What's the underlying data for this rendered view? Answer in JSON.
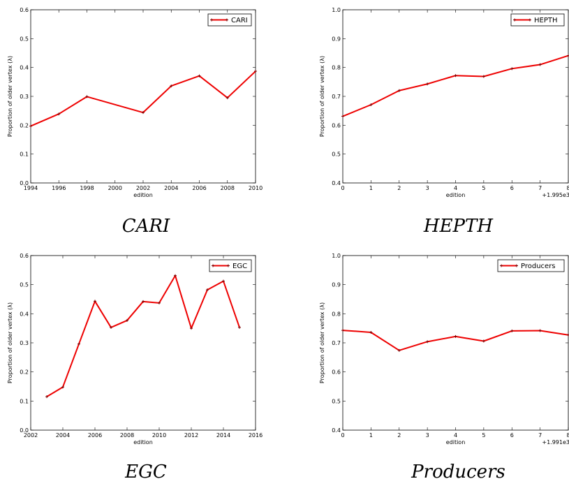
{
  "chart_data": [
    {
      "type": "line",
      "caption": "CARI",
      "xlabel": "edition",
      "ylabel": "Proportion of older vertex (λ)",
      "xlim": [
        1994,
        2010
      ],
      "ylim": [
        0.0,
        0.6
      ],
      "xticks": [
        1994,
        1996,
        1998,
        2000,
        2002,
        2004,
        2006,
        2008,
        2010
      ],
      "yticks": [
        0.0,
        0.1,
        0.2,
        0.3,
        0.4,
        0.5,
        0.6
      ],
      "tick_offset_label": "",
      "legend_position": "top-right",
      "color": "#ee0000",
      "series": [
        {
          "name": "CARI",
          "x": [
            1994,
            1996,
            1998,
            2002,
            2004,
            2006,
            2008,
            2010
          ],
          "values": [
            0.197,
            0.239,
            0.299,
            0.244,
            0.336,
            0.371,
            0.295,
            0.387
          ]
        }
      ]
    },
    {
      "type": "line",
      "caption": "HEPTH",
      "xlabel": "edition",
      "ylabel": "Proportion of older vertex (λ)",
      "xlim": [
        0,
        8
      ],
      "ylim": [
        0.4,
        1.0
      ],
      "xticks": [
        0,
        1,
        2,
        3,
        4,
        5,
        6,
        7,
        8
      ],
      "yticks": [
        0.4,
        0.5,
        0.6,
        0.7,
        0.8,
        0.9,
        1.0
      ],
      "tick_offset_label": "+1.995e3",
      "legend_position": "top-right",
      "color": "#ee0000",
      "series": [
        {
          "name": "HEPTH",
          "x": [
            0,
            1,
            2,
            3,
            4,
            5,
            6,
            7,
            8
          ],
          "values": [
            0.631,
            0.671,
            0.72,
            0.743,
            0.772,
            0.769,
            0.796,
            0.81,
            0.841
          ]
        }
      ]
    },
    {
      "type": "line",
      "caption": "EGC",
      "xlabel": "edition",
      "ylabel": "Proportion of older vertex (λ)",
      "xlim": [
        2002,
        2016
      ],
      "ylim": [
        0.0,
        0.6
      ],
      "xticks": [
        2002,
        2004,
        2006,
        2008,
        2010,
        2012,
        2014,
        2016
      ],
      "yticks": [
        0.0,
        0.1,
        0.2,
        0.3,
        0.4,
        0.5,
        0.6
      ],
      "tick_offset_label": "",
      "legend_position": "top-right",
      "color": "#ee0000",
      "series": [
        {
          "name": "EGC",
          "x": [
            2003,
            2004,
            2005,
            2006,
            2007,
            2008,
            2009,
            2010,
            2011,
            2012,
            2013,
            2014,
            2015
          ],
          "values": [
            0.115,
            0.148,
            0.296,
            0.443,
            0.353,
            0.377,
            0.442,
            0.437,
            0.531,
            0.35,
            0.482,
            0.512,
            0.353
          ]
        }
      ]
    },
    {
      "type": "line",
      "caption": "Producers",
      "xlabel": "edition",
      "ylabel": "Proportion of older vertex (λ)",
      "xlim": [
        0,
        8
      ],
      "ylim": [
        0.4,
        1.0
      ],
      "xticks": [
        0,
        1,
        2,
        3,
        4,
        5,
        6,
        7,
        8
      ],
      "yticks": [
        0.4,
        0.5,
        0.6,
        0.7,
        0.8,
        0.9,
        1.0
      ],
      "tick_offset_label": "+1.991e3",
      "legend_position": "top-right",
      "color": "#ee0000",
      "series": [
        {
          "name": "Producers",
          "x": [
            0,
            1,
            2,
            3,
            4,
            5,
            6,
            7,
            8
          ],
          "values": [
            0.743,
            0.736,
            0.674,
            0.704,
            0.722,
            0.706,
            0.741,
            0.742,
            0.727
          ]
        }
      ]
    }
  ]
}
